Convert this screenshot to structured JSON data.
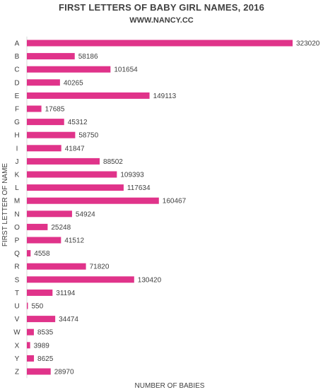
{
  "chart_data": {
    "type": "bar",
    "orientation": "horizontal",
    "title": "FIRST LETTERS OF BABY GIRL NAMES, 2016",
    "subtitle": "WWW.NANCY.CC",
    "xlabel": "NUMBER  OF BABIES",
    "ylabel": "FIRST LETTER  OF NAME",
    "xlim": [
      0,
      323020
    ],
    "grid": false,
    "bar_color": "#e0338a",
    "categories": [
      "A",
      "B",
      "C",
      "D",
      "E",
      "F",
      "G",
      "H",
      "I",
      "J",
      "K",
      "L",
      "M",
      "N",
      "O",
      "P",
      "Q",
      "R",
      "S",
      "T",
      "U",
      "V",
      "W",
      "X",
      "Y",
      "Z"
    ],
    "values": [
      323020,
      58186,
      101654,
      40265,
      149113,
      17685,
      45312,
      58750,
      41847,
      88502,
      109393,
      117634,
      160467,
      54924,
      25248,
      41512,
      4558,
      71820,
      130420,
      31194,
      550,
      34474,
      8535,
      3989,
      8625,
      28970
    ],
    "value_labels": [
      "323020",
      "58186",
      "101654",
      "40265",
      "149113",
      "17685",
      "45312",
      "58750",
      "41847",
      "88502",
      "109393",
      "117634",
      "160467",
      "54924",
      "25248",
      "41512",
      "4558",
      "71820",
      "130420",
      "31194",
      "550",
      "34474",
      "8535",
      "3989",
      "8625",
      "28970"
    ]
  }
}
